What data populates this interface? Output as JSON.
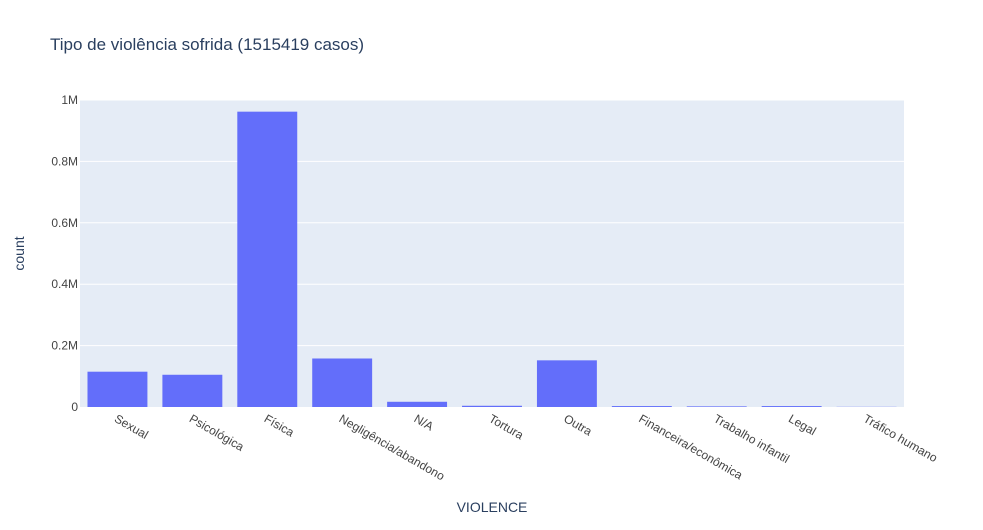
{
  "chart_data": {
    "type": "bar",
    "title": "Tipo de violência sofrida (1515419 casos)",
    "xlabel": "VIOLENCE",
    "ylabel": "count",
    "categories": [
      "Sexual",
      "Psicológica",
      "Física",
      "Negligência/abandono",
      "N/A",
      "Tortura",
      "Outra",
      "Financeira/econômica",
      "Trabalho infantil",
      "Legal",
      "Tráfico humano"
    ],
    "values": [
      115000,
      105000,
      962000,
      158000,
      17000,
      4000,
      152000,
      3000,
      2000,
      3000,
      500
    ],
    "ylim": [
      0,
      1000000
    ],
    "yticks": [
      0,
      200000,
      400000,
      600000,
      800000,
      1000000
    ],
    "ytick_labels": [
      "0",
      "0.2M",
      "0.4M",
      "0.6M",
      "0.8M",
      "1M"
    ],
    "grid": true,
    "colors": {
      "bar": "#636efa",
      "plot_bg": "#e5ecf6",
      "grid": "#ffffff",
      "text": "#2a3f5f",
      "tick_text": "#444444"
    }
  }
}
